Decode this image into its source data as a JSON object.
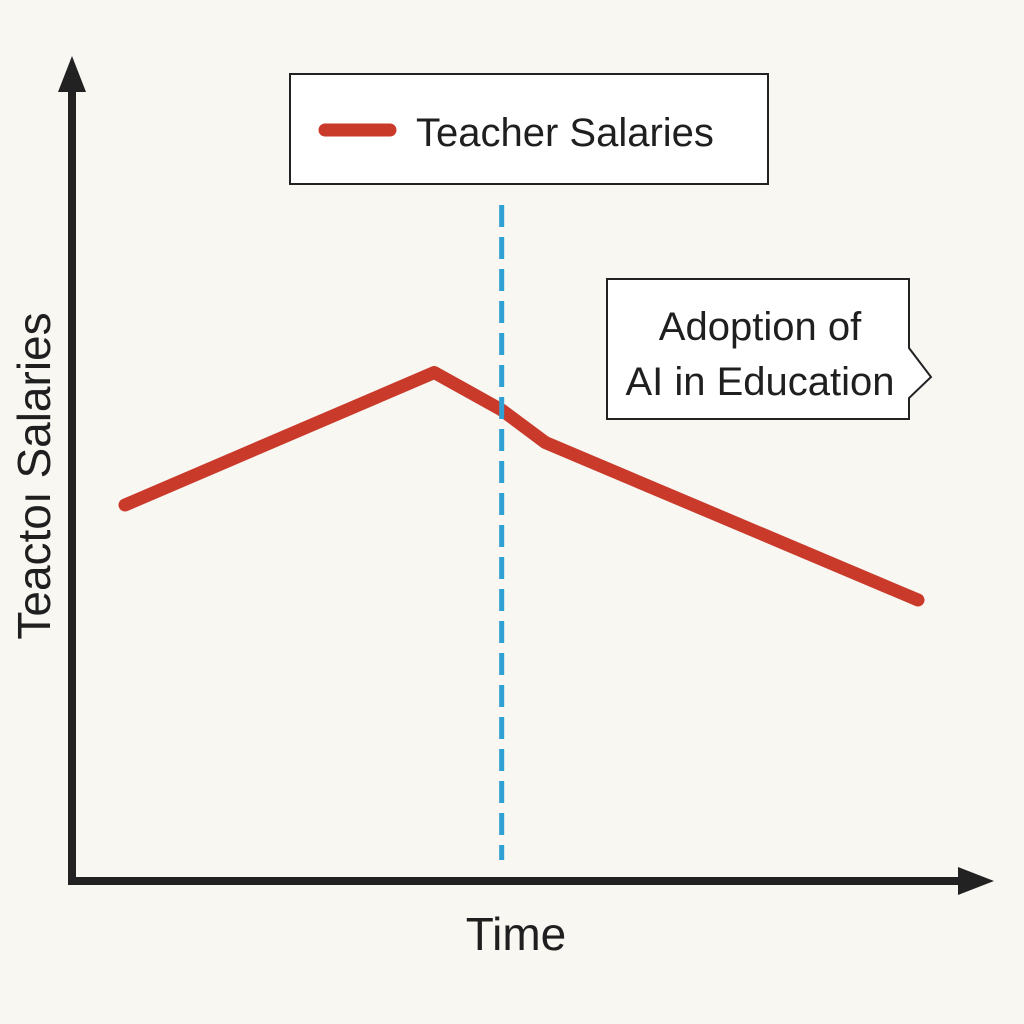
{
  "chart_data": {
    "type": "line",
    "title": "",
    "xlabel": "Time",
    "ylabel": "Teactoı Salaries",
    "legend": {
      "position": "top-center",
      "entries": [
        "Teacher Salaries"
      ]
    },
    "xlim": [
      0,
      100
    ],
    "ylim": [
      0,
      100
    ],
    "grid": false,
    "series": [
      {
        "name": "Teacher Salaries",
        "color": "#c93a2b",
        "x": [
          0,
          39,
          47.5,
          53,
          100
        ],
        "y": [
          40,
          66.5,
          59,
          52.5,
          21
        ]
      }
    ],
    "annotations": [
      {
        "text_lines": [
          "Adoption of",
          "AI in Education"
        ],
        "x": 47.5,
        "style": "dashed-vertical",
        "color": "#2f9fd4"
      }
    ]
  }
}
